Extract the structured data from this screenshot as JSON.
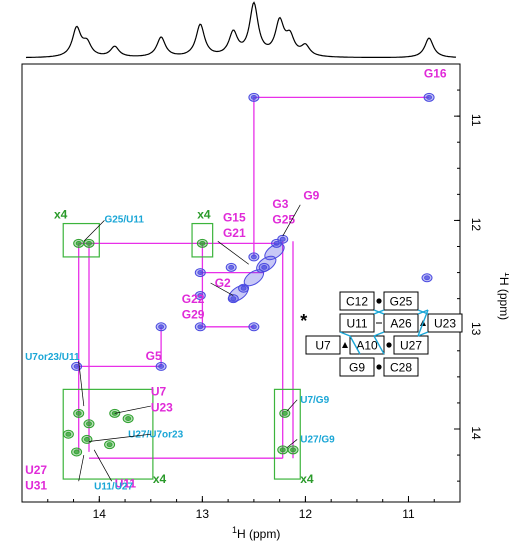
{
  "chart_data": {
    "type": "scatter",
    "xlabel_sup": "1",
    "xlabel": "H (ppm)",
    "ylabel_sup": "1",
    "ylabel": "H (ppm)",
    "xlim": [
      14.75,
      10.5
    ],
    "ylim": [
      10.5,
      14.7
    ],
    "x_ticks": [
      "14",
      "13",
      "12",
      "11"
    ],
    "x_tick_values": [
      14,
      13,
      12,
      11
    ],
    "y_ticks": [
      "11",
      "12",
      "13",
      "14"
    ],
    "y_tick_values": [
      11,
      12,
      13,
      14
    ],
    "grid": false,
    "colors": {
      "imino_walk": "#e830e8",
      "label_magenta": "#e02ad8",
      "label_cyan": "#1aa6d6",
      "label_green": "#2a9a2a",
      "peak_blue": "#4a4ae0",
      "peak_green": "#2ea02e",
      "box_green": "#3cb43c",
      "pair_line": "#1aa6d6"
    },
    "spectrum_1d_peaks": [
      {
        "ppm": 14.22,
        "height": 0.55
      },
      {
        "ppm": 14.12,
        "height": 0.25
      },
      {
        "ppm": 13.85,
        "height": 0.2
      },
      {
        "ppm": 13.4,
        "height": 0.38
      },
      {
        "ppm": 13.02,
        "height": 0.62
      },
      {
        "ppm": 12.7,
        "height": 0.45
      },
      {
        "ppm": 12.5,
        "height": 1.0
      },
      {
        "ppm": 12.25,
        "height": 0.65
      },
      {
        "ppm": 12.15,
        "height": 0.35
      },
      {
        "ppm": 12.0,
        "height": 0.2
      },
      {
        "ppm": 10.8,
        "height": 0.38
      }
    ],
    "peaks": [
      {
        "x": 10.8,
        "y": 10.82,
        "color": "blue"
      },
      {
        "x": 12.5,
        "y": 10.82,
        "color": "blue"
      },
      {
        "x": 12.5,
        "y": 12.35,
        "color": "blue"
      },
      {
        "x": 12.28,
        "y": 12.22,
        "color": "blue"
      },
      {
        "x": 12.22,
        "y": 12.18,
        "color": "blue"
      },
      {
        "x": 12.4,
        "y": 12.45,
        "color": "blue"
      },
      {
        "x": 12.6,
        "y": 12.65,
        "color": "blue"
      },
      {
        "x": 12.7,
        "y": 12.75,
        "color": "blue"
      },
      {
        "x": 13.02,
        "y": 12.5,
        "color": "blue"
      },
      {
        "x": 13.02,
        "y": 12.72,
        "color": "blue"
      },
      {
        "x": 13.02,
        "y": 13.02,
        "color": "blue"
      },
      {
        "x": 12.5,
        "y": 13.02,
        "color": "blue"
      },
      {
        "x": 13.4,
        "y": 13.02,
        "color": "blue"
      },
      {
        "x": 13.4,
        "y": 13.4,
        "color": "blue"
      },
      {
        "x": 14.22,
        "y": 13.4,
        "color": "blue"
      },
      {
        "x": 12.72,
        "y": 12.45,
        "color": "blue"
      },
      {
        "x": 10.82,
        "y": 12.55,
        "color": "blue"
      },
      {
        "x": 14.2,
        "y": 12.22,
        "color": "green"
      },
      {
        "x": 14.1,
        "y": 12.22,
        "color": "green"
      },
      {
        "x": 13.0,
        "y": 12.22,
        "color": "green"
      },
      {
        "x": 14.2,
        "y": 13.85,
        "color": "green"
      },
      {
        "x": 14.1,
        "y": 13.95,
        "color": "green"
      },
      {
        "x": 13.85,
        "y": 13.85,
        "color": "green"
      },
      {
        "x": 13.72,
        "y": 13.9,
        "color": "green"
      },
      {
        "x": 14.22,
        "y": 14.22,
        "color": "green"
      },
      {
        "x": 14.12,
        "y": 14.1,
        "color": "green"
      },
      {
        "x": 13.9,
        "y": 14.15,
        "color": "green"
      },
      {
        "x": 14.3,
        "y": 14.05,
        "color": "green"
      },
      {
        "x": 12.2,
        "y": 13.85,
        "color": "green"
      },
      {
        "x": 12.22,
        "y": 14.2,
        "color": "green"
      },
      {
        "x": 12.12,
        "y": 14.2,
        "color": "green"
      }
    ],
    "walk_path": [
      [
        [
          10.8,
          10.82
        ],
        [
          12.5,
          10.82
        ],
        [
          12.5,
          12.35
        ]
      ],
      [
        [
          12.28,
          12.22
        ],
        [
          14.2,
          12.22
        ]
      ],
      [
        [
          14.2,
          12.22
        ],
        [
          14.2,
          14.22
        ]
      ],
      [
        [
          14.1,
          12.22
        ],
        [
          14.1,
          14.22
        ]
      ],
      [
        [
          13.0,
          12.22
        ],
        [
          13.0,
          13.02
        ]
      ],
      [
        [
          13.02,
          12.5
        ],
        [
          12.4,
          12.5
        ]
      ],
      [
        [
          13.02,
          13.02
        ],
        [
          12.5,
          13.02
        ]
      ],
      [
        [
          13.4,
          13.02
        ],
        [
          13.4,
          13.4
        ]
      ],
      [
        [
          13.4,
          13.4
        ],
        [
          14.22,
          13.4
        ]
      ],
      [
        [
          14.1,
          14.28
        ],
        [
          12.22,
          14.28
        ]
      ],
      [
        [
          12.22,
          12.2
        ],
        [
          12.22,
          14.28
        ]
      ],
      [
        [
          12.12,
          12.2
        ],
        [
          12.12,
          14.28
        ]
      ]
    ],
    "assignment_labels": [
      {
        "text": "G16",
        "x": 10.85,
        "y": 10.63,
        "color": "magenta"
      },
      {
        "text": "G9",
        "x": 12.02,
        "y": 11.8,
        "color": "magenta"
      },
      {
        "text": "G3",
        "x": 12.32,
        "y": 11.88,
        "color": "magenta"
      },
      {
        "text": "G25",
        "x": 12.32,
        "y": 12.03,
        "color": "magenta"
      },
      {
        "text": "G15",
        "x": 12.8,
        "y": 12.01,
        "color": "magenta"
      },
      {
        "text": "G21",
        "x": 12.8,
        "y": 12.16,
        "color": "magenta"
      },
      {
        "text": "G2",
        "x": 12.88,
        "y": 12.64,
        "color": "magenta"
      },
      {
        "text": "G22",
        "x": 13.2,
        "y": 12.79,
        "color": "magenta"
      },
      {
        "text": "G29",
        "x": 13.2,
        "y": 12.94,
        "color": "magenta"
      },
      {
        "text": "G5",
        "x": 13.55,
        "y": 13.34,
        "color": "magenta"
      },
      {
        "text": "U7",
        "x": 13.5,
        "y": 13.68,
        "color": "magenta"
      },
      {
        "text": "U23",
        "x": 13.5,
        "y": 13.83,
        "color": "magenta"
      },
      {
        "text": "U27",
        "x": 14.72,
        "y": 14.43,
        "color": "magenta"
      },
      {
        "text": "U31",
        "x": 14.72,
        "y": 14.58,
        "color": "magenta"
      },
      {
        "text": "U11",
        "x": 13.85,
        "y": 14.56,
        "color": "magenta"
      },
      {
        "text": "G25/U11",
        "x": 13.95,
        "y": 12.02,
        "color": "cyan"
      },
      {
        "text": "U7or23/U11",
        "x": 14.72,
        "y": 13.34,
        "color": "cyan"
      },
      {
        "text": "U27/U7or23",
        "x": 13.72,
        "y": 14.08,
        "color": "cyan"
      },
      {
        "text": "U11/U27",
        "x": 14.05,
        "y": 14.58,
        "color": "cyan"
      },
      {
        "text": "U7/G9",
        "x": 12.05,
        "y": 13.75,
        "color": "cyan"
      },
      {
        "text": "U27/G9",
        "x": 12.05,
        "y": 14.13,
        "color": "cyan"
      },
      {
        "text": "x4",
        "x": 14.44,
        "y": 11.98,
        "color": "green"
      },
      {
        "text": "x4",
        "x": 13.05,
        "y": 11.98,
        "color": "green"
      },
      {
        "text": "x4",
        "x": 13.48,
        "y": 14.52,
        "color": "green"
      },
      {
        "text": "x4",
        "x": 12.05,
        "y": 14.52,
        "color": "green"
      },
      {
        "text": "*",
        "x": 12.05,
        "y": 13.02,
        "color": "black"
      }
    ],
    "zoom_boxes": [
      {
        "x1": 14.35,
        "x2": 14.0,
        "y1": 12.03,
        "y2": 12.35
      },
      {
        "x1": 13.1,
        "x2": 12.9,
        "y1": 12.03,
        "y2": 12.35
      },
      {
        "x1": 14.35,
        "x2": 13.48,
        "y1": 13.62,
        "y2": 14.48
      },
      {
        "x1": 12.3,
        "x2": 12.05,
        "y1": 13.62,
        "y2": 14.48
      }
    ],
    "pairing_diagram": {
      "rows": [
        {
          "left": "C12",
          "mark": "dot",
          "right": "G25"
        },
        {
          "left": "U11",
          "mark": "dash",
          "right": "A26",
          "mark2": "triangle",
          "right2": "U23"
        },
        {
          "left": "U7",
          "mark": "triangle",
          "right": "A10",
          "mark2": "dot",
          "right2": "U27"
        },
        {
          "left": "G9",
          "mark": "dot",
          "right": "C28"
        }
      ]
    }
  }
}
